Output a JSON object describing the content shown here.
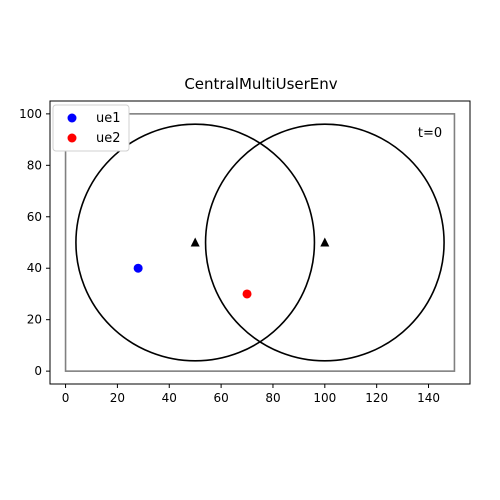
{
  "chart_data": {
    "type": "scatter",
    "title": "CentralMultiUserEnv",
    "annotation": "t=0",
    "xlim": [
      -6,
      156
    ],
    "ylim": [
      -5,
      105
    ],
    "x_ticks": [
      0,
      20,
      40,
      60,
      80,
      100,
      120,
      140
    ],
    "y_ticks": [
      0,
      20,
      40,
      60,
      80,
      100
    ],
    "area_rectangle": {
      "x": [
        0,
        150
      ],
      "y": [
        0,
        100
      ],
      "color": "#808080"
    },
    "base_stations": [
      {
        "x": 50,
        "y": 50,
        "range_radius": 46
      },
      {
        "x": 100,
        "y": 50,
        "range_radius": 46
      }
    ],
    "series": [
      {
        "name": "ue1",
        "color": "#0000ff",
        "points": [
          {
            "x": 28,
            "y": 40
          }
        ]
      },
      {
        "name": "ue2",
        "color": "#ff0000",
        "points": [
          {
            "x": 70,
            "y": 30
          }
        ]
      }
    ],
    "legend_position": "top-left",
    "grid": false
  }
}
